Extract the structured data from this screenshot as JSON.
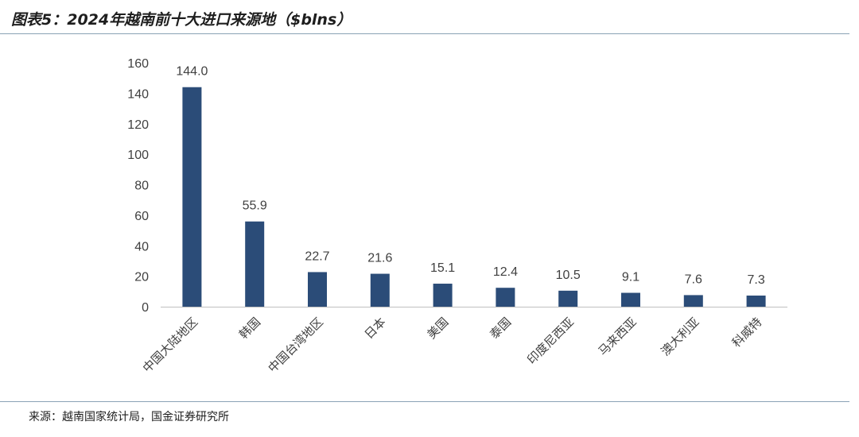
{
  "header": {
    "title": "图表5：2024年越南前十大进口来源地（$blns）"
  },
  "footer": {
    "source": "来源：越南国家统计局，国金证券研究所"
  },
  "colors": {
    "bar": "#2b4c78",
    "rule": "#8aa2b5",
    "axis": "#bfbfbf"
  },
  "chart_data": {
    "type": "bar",
    "title": "图表5：2024年越南前十大进口来源地（$blns）",
    "xlabel": "",
    "ylabel": "",
    "ylim": [
      0,
      160
    ],
    "yticks": [
      0,
      20,
      40,
      60,
      80,
      100,
      120,
      140,
      160
    ],
    "grid": false,
    "legend": "none",
    "categories": [
      "中国大陆地区",
      "韩国",
      "中国台湾地区",
      "日本",
      "美国",
      "泰国",
      "印度尼西亚",
      "马来西亚",
      "澳大利亚",
      "科威特"
    ],
    "values": [
      144.0,
      55.9,
      22.7,
      21.6,
      15.1,
      12.4,
      10.5,
      9.1,
      7.6,
      7.3
    ],
    "data_labels": [
      "144.0",
      "55.9",
      "22.7",
      "21.6",
      "15.1",
      "12.4",
      "10.5",
      "9.1",
      "7.6",
      "7.3"
    ]
  }
}
